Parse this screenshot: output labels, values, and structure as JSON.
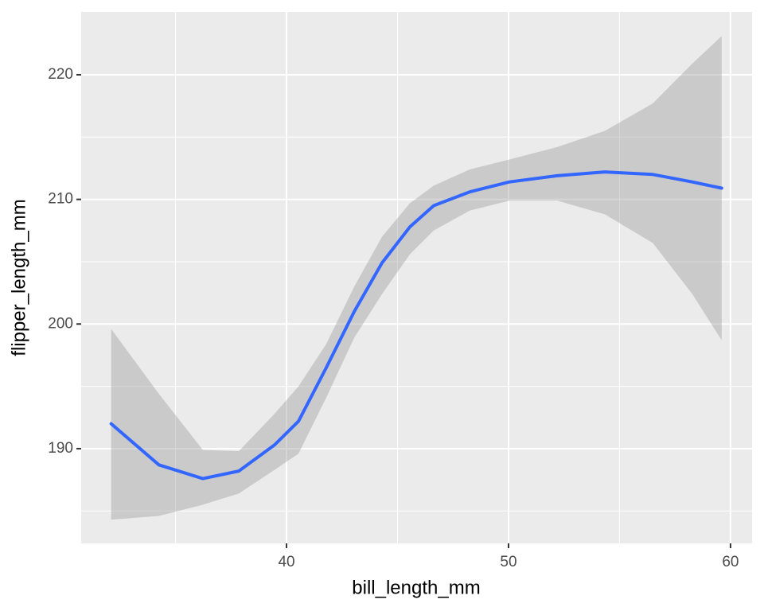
{
  "chart_data": {
    "type": "smooth",
    "x_label": "bill_length_mm",
    "y_label": "flipper_length_mm",
    "x": [
      32.1,
      34.25,
      36.23,
      37.85,
      39.46,
      40.54,
      41.79,
      43.05,
      44.3,
      45.56,
      46.63,
      48.25,
      50.04,
      52.19,
      54.34,
      56.5,
      58.28,
      59.6
    ],
    "series": [
      {
        "color": "#3366ff",
        "band_color": "#999999",
        "values": [
          192.0,
          188.7,
          187.6,
          188.2,
          190.3,
          192.2,
          196.5,
          201.0,
          204.9,
          207.8,
          209.5,
          210.6,
          211.4,
          211.9,
          212.2,
          212.0,
          211.4,
          210.9
        ],
        "lower": [
          184.3,
          184.6,
          185.5,
          186.4,
          188.3,
          189.6,
          194.1,
          198.9,
          202.4,
          205.6,
          207.5,
          209.1,
          209.9,
          209.9,
          208.8,
          206.5,
          202.4,
          198.7
        ],
        "upper": [
          199.6,
          194.4,
          189.9,
          189.8,
          192.8,
          195.0,
          198.4,
          203.0,
          207.0,
          209.7,
          211.1,
          212.4,
          213.2,
          214.2,
          215.5,
          217.7,
          220.9,
          223.1
        ]
      }
    ],
    "xlim": [
      30.75,
      60.97
    ],
    "ylim": [
      182.4,
      225.04
    ],
    "xticks": [
      40,
      50,
      60
    ],
    "yticks": [
      190,
      200,
      210,
      220
    ],
    "xminor": [
      35,
      45,
      55
    ],
    "yminor": [
      185,
      195,
      205,
      215
    ],
    "grid": true
  }
}
